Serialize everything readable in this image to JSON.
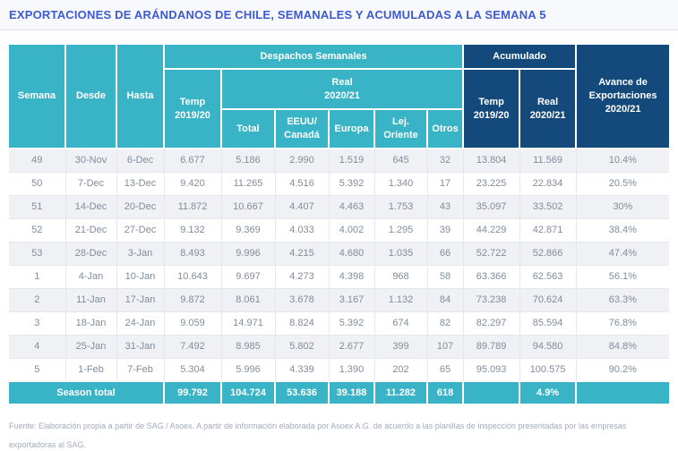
{
  "title": "EXPORTACIONES DE ARÁNDANOS DE CHILE, SEMANALES Y ACUMULADAS A LA SEMANA 5",
  "colors": {
    "header_teal": "#39b3c6",
    "header_navy": "#14497c",
    "title_blue": "#3d5ad5",
    "row_stripe": "#f0f1f4",
    "data_text": "#818d9b"
  },
  "chart_data": {
    "type": "table",
    "title": "EXPORTACIONES DE ARÁNDANOS DE CHILE, SEMANALES Y ACUMULADAS A LA SEMANA 5",
    "header_groups": {
      "semana": "Semana",
      "desde": "Desde",
      "hasta": "Hasta",
      "despachos_semanales": "Despachos Semanales",
      "acumulado": "Acumulado",
      "avance": "Avance de\nExportaciones\n2020/21",
      "temp_weekly": "Temp\n2019/20",
      "real_weekly": "Real\n2020/21",
      "total": "Total",
      "eeuu_canada": "EEUU/\nCanadá",
      "europa": "Europa",
      "lej_oriente": "Lej.\nOriente",
      "otros": "Otros",
      "temp_acum": "Temp\n2019/20",
      "real_acum": "Real\n2020/21"
    },
    "columns": [
      "Semana",
      "Desde",
      "Hasta",
      "Despachos Temp 2019/20",
      "Despachos Real 2020/21 Total",
      "Despachos Real 2020/21 EEUU/Canadá",
      "Despachos Real 2020/21 Europa",
      "Despachos Real 2020/21 Lej. Oriente",
      "Despachos Real 2020/21 Otros",
      "Acumulado Temp 2019/20",
      "Acumulado Real 2020/21",
      "Avance de Exportaciones 2020/21"
    ],
    "rows": [
      [
        "49",
        "30-Nov",
        "6-Dec",
        "6.677",
        "5.186",
        "2.990",
        "1.519",
        "645",
        "32",
        "13.804",
        "11.569",
        "10.4%"
      ],
      [
        "50",
        "7-Dec",
        "13-Dec",
        "9.420",
        "11.265",
        "4.516",
        "5.392",
        "1.340",
        "17",
        "23.225",
        "22.834",
        "20.5%"
      ],
      [
        "51",
        "14-Dec",
        "20-Dec",
        "11.872",
        "10.667",
        "4.407",
        "4.463",
        "1.753",
        "43",
        "35.097",
        "33.502",
        "30%"
      ],
      [
        "52",
        "21-Dec",
        "27-Dec",
        "9.132",
        "9.369",
        "4.033",
        "4.002",
        "1.295",
        "39",
        "44.229",
        "42.871",
        "38.4%"
      ],
      [
        "53",
        "28-Dec",
        "3-Jan",
        "8.493",
        "9.996",
        "4.215",
        "4.680",
        "1.035",
        "66",
        "52.722",
        "52.866",
        "47.4%"
      ],
      [
        "1",
        "4-Jan",
        "10-Jan",
        "10.643",
        "9.697",
        "4.273",
        "4.398",
        "968",
        "58",
        "63.366",
        "62.563",
        "56.1%"
      ],
      [
        "2",
        "11-Jan",
        "17-Jan",
        "9.872",
        "8.061",
        "3.678",
        "3.167",
        "1.132",
        "84",
        "73.238",
        "70.624",
        "63.3%"
      ],
      [
        "3",
        "18-Jan",
        "24-Jan",
        "9.059",
        "14.971",
        "8.824",
        "5.392",
        "674",
        "82",
        "82.297",
        "85.594",
        "76.8%"
      ],
      [
        "4",
        "25-Jan",
        "31-Jan",
        "7.492",
        "8.985",
        "5.802",
        "2.677",
        "399",
        "107",
        "89.789",
        "94.580",
        "84.8%"
      ],
      [
        "5",
        "1-Feb",
        "7-Feb",
        "5.304",
        "5.996",
        "4.339",
        "1.390",
        "202",
        "65",
        "95.093",
        "100.575",
        "90.2%"
      ]
    ],
    "total_row": {
      "label": "Season total",
      "values": [
        "99.792",
        "104.724",
        "53.636",
        "39.188",
        "11.282",
        "618",
        "",
        "4.9%",
        ""
      ]
    }
  },
  "footer": "Fuente: Elaboración propia a partir de SAG / Asoex. A partir de información elaborada por Asoex A.G. de acuerdo a las planillas de inspección presentadas por las empresas exportadoras al SAG."
}
